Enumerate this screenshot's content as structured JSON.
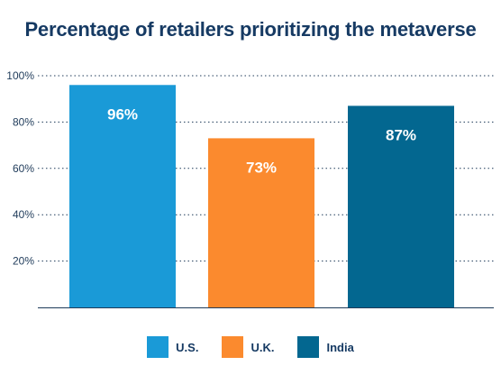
{
  "chart_data": {
    "type": "bar",
    "title": "Percentage of retailers prioritizing the metaverse",
    "categories": [
      "U.S.",
      "U.K.",
      "India"
    ],
    "values": [
      96,
      73,
      87
    ],
    "data_labels": [
      "96%",
      "73%",
      "87%"
    ],
    "colors": [
      "#1a9ad7",
      "#fb8a2e",
      "#036790"
    ],
    "ylim": [
      0,
      100
    ],
    "y_ticks": [
      {
        "value": 20,
        "label": "20%"
      },
      {
        "value": 40,
        "label": "40%"
      },
      {
        "value": 60,
        "label": "60%"
      },
      {
        "value": 80,
        "label": "80%"
      },
      {
        "value": 100,
        "label": "100%"
      }
    ],
    "grid": true,
    "legend_position": "bottom",
    "xlabel": "",
    "ylabel": ""
  }
}
